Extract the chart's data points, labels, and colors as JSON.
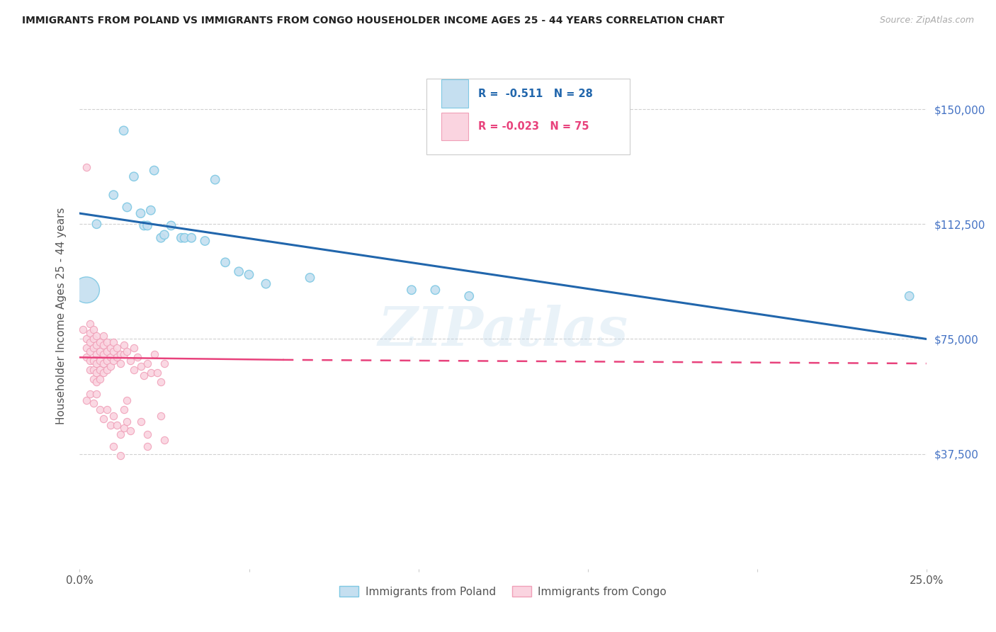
{
  "title": "IMMIGRANTS FROM POLAND VS IMMIGRANTS FROM CONGO HOUSEHOLDER INCOME AGES 25 - 44 YEARS CORRELATION CHART",
  "source": "Source: ZipAtlas.com",
  "ylabel": "Householder Income Ages 25 - 44 years",
  "ytick_labels": [
    "$37,500",
    "$75,000",
    "$112,500",
    "$150,000"
  ],
  "ytick_values": [
    37500,
    75000,
    112500,
    150000
  ],
  "ylim": [
    0,
    165000
  ],
  "xlim": [
    0.0,
    0.25
  ],
  "watermark": "ZIPatlas",
  "poland_color": "#7ec8e3",
  "poland_fill": "#c5dff0",
  "congo_color": "#f0a0b8",
  "congo_fill": "#fad4e0",
  "trendline_poland_color": "#2166ac",
  "trendline_congo_color": "#e8427c",
  "grid_color": "#d0d0d0",
  "poland_trend_x0": 0.0,
  "poland_trend_y0": 116000,
  "poland_trend_x1": 0.25,
  "poland_trend_y1": 75000,
  "congo_trend_solid_x0": 0.0,
  "congo_trend_solid_y0": 69000,
  "congo_trend_solid_x1": 0.06,
  "congo_trend_solid_y1": 68200,
  "congo_trend_dash_x0": 0.06,
  "congo_trend_dash_y0": 68200,
  "congo_trend_dash_x1": 0.25,
  "congo_trend_dash_y1": 67000,
  "poland_points": [
    [
      0.005,
      112500
    ],
    [
      0.01,
      122000
    ],
    [
      0.013,
      143000
    ],
    [
      0.014,
      118000
    ],
    [
      0.016,
      128000
    ],
    [
      0.018,
      116000
    ],
    [
      0.019,
      112000
    ],
    [
      0.02,
      112000
    ],
    [
      0.021,
      117000
    ],
    [
      0.022,
      130000
    ],
    [
      0.024,
      108000
    ],
    [
      0.025,
      109000
    ],
    [
      0.027,
      112000
    ],
    [
      0.03,
      108000
    ],
    [
      0.031,
      108000
    ],
    [
      0.033,
      108000
    ],
    [
      0.037,
      107000
    ],
    [
      0.04,
      127000
    ],
    [
      0.043,
      100000
    ],
    [
      0.047,
      97000
    ],
    [
      0.05,
      96000
    ],
    [
      0.055,
      93000
    ],
    [
      0.068,
      95000
    ],
    [
      0.098,
      91000
    ],
    [
      0.105,
      91000
    ],
    [
      0.115,
      89000
    ],
    [
      0.002,
      91000
    ],
    [
      0.245,
      89000
    ]
  ],
  "poland_sizes": [
    80,
    80,
    80,
    80,
    80,
    80,
    80,
    80,
    80,
    80,
    80,
    80,
    80,
    80,
    80,
    80,
    80,
    80,
    80,
    80,
    80,
    80,
    80,
    80,
    80,
    80,
    700,
    80
  ],
  "congo_points": [
    [
      0.001,
      78000
    ],
    [
      0.002,
      75000
    ],
    [
      0.002,
      72000
    ],
    [
      0.002,
      69000
    ],
    [
      0.003,
      80000
    ],
    [
      0.003,
      77000
    ],
    [
      0.003,
      74000
    ],
    [
      0.003,
      71000
    ],
    [
      0.003,
      68000
    ],
    [
      0.003,
      65000
    ],
    [
      0.004,
      78000
    ],
    [
      0.004,
      75000
    ],
    [
      0.004,
      72000
    ],
    [
      0.004,
      68000
    ],
    [
      0.004,
      65000
    ],
    [
      0.004,
      62000
    ],
    [
      0.005,
      76000
    ],
    [
      0.005,
      73000
    ],
    [
      0.005,
      70000
    ],
    [
      0.005,
      67000
    ],
    [
      0.005,
      64000
    ],
    [
      0.005,
      61000
    ],
    [
      0.006,
      74000
    ],
    [
      0.006,
      71000
    ],
    [
      0.006,
      68000
    ],
    [
      0.006,
      65000
    ],
    [
      0.006,
      62000
    ],
    [
      0.007,
      76000
    ],
    [
      0.007,
      73000
    ],
    [
      0.007,
      70000
    ],
    [
      0.007,
      67000
    ],
    [
      0.007,
      64000
    ],
    [
      0.008,
      74000
    ],
    [
      0.008,
      71000
    ],
    [
      0.008,
      68000
    ],
    [
      0.008,
      65000
    ],
    [
      0.009,
      72000
    ],
    [
      0.009,
      69000
    ],
    [
      0.009,
      66000
    ],
    [
      0.01,
      74000
    ],
    [
      0.01,
      71000
    ],
    [
      0.01,
      68000
    ],
    [
      0.011,
      72000
    ],
    [
      0.011,
      69000
    ],
    [
      0.012,
      70000
    ],
    [
      0.012,
      67000
    ],
    [
      0.013,
      73000
    ],
    [
      0.013,
      70000
    ],
    [
      0.014,
      71000
    ],
    [
      0.015,
      68000
    ],
    [
      0.016,
      72000
    ],
    [
      0.016,
      65000
    ],
    [
      0.017,
      69000
    ],
    [
      0.018,
      66000
    ],
    [
      0.019,
      63000
    ],
    [
      0.02,
      67000
    ],
    [
      0.021,
      64000
    ],
    [
      0.022,
      70000
    ],
    [
      0.023,
      64000
    ],
    [
      0.024,
      61000
    ],
    [
      0.025,
      67000
    ],
    [
      0.002,
      55000
    ],
    [
      0.003,
      57000
    ],
    [
      0.004,
      54000
    ],
    [
      0.005,
      57000
    ],
    [
      0.006,
      52000
    ],
    [
      0.007,
      49000
    ],
    [
      0.008,
      52000
    ],
    [
      0.009,
      47000
    ],
    [
      0.01,
      50000
    ],
    [
      0.011,
      47000
    ],
    [
      0.012,
      44000
    ],
    [
      0.013,
      52000
    ],
    [
      0.013,
      46000
    ],
    [
      0.014,
      48000
    ],
    [
      0.015,
      45000
    ],
    [
      0.01,
      40000
    ],
    [
      0.012,
      37000
    ],
    [
      0.014,
      55000
    ],
    [
      0.018,
      48000
    ],
    [
      0.02,
      44000
    ],
    [
      0.024,
      50000
    ],
    [
      0.02,
      40000
    ],
    [
      0.025,
      42000
    ],
    [
      0.002,
      131000
    ]
  ]
}
